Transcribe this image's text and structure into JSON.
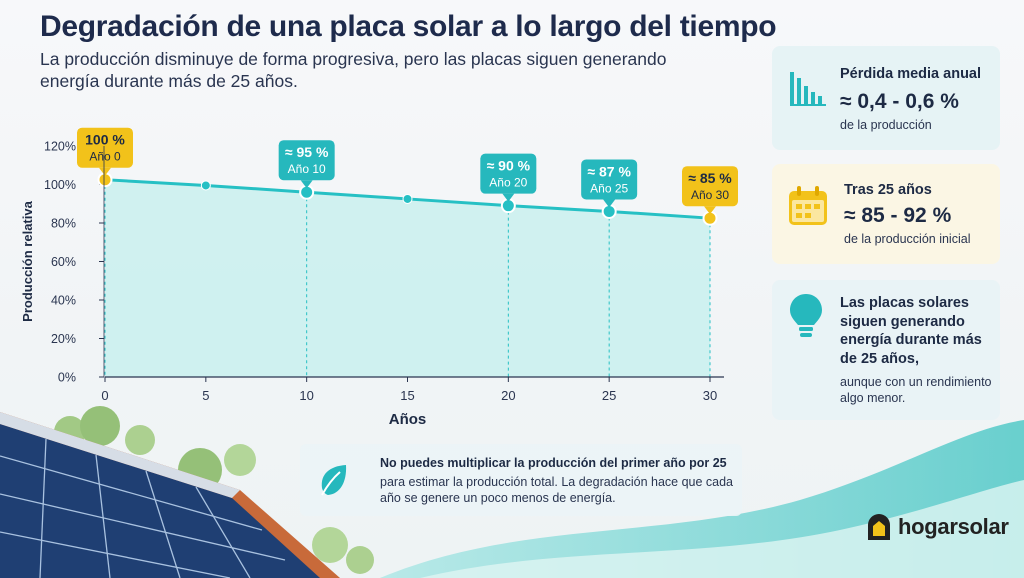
{
  "title": "Degradación de una placa solar a lo largo del tiempo",
  "subtitle": "La producción disminuye de forma progresiva, pero las placas siguen generando energía durante más de 25 años.",
  "chart_data": {
    "type": "line",
    "xlabel": "Años",
    "ylabel": "Producción relativa",
    "x": [
      0,
      5,
      10,
      15,
      20,
      25,
      30
    ],
    "xlim": [
      0,
      30
    ],
    "ylim": [
      0,
      120
    ],
    "x_ticks": [
      "0",
      "5",
      "10",
      "15",
      "20",
      "25",
      "30"
    ],
    "y_ticks": [
      "0%",
      "20%",
      "40%",
      "60%",
      "80%",
      "100%",
      "120%"
    ],
    "y_tick_values": [
      0,
      20,
      40,
      60,
      80,
      100,
      120
    ],
    "series": [
      {
        "values": [
          102.5,
          99.5,
          96,
          92.5,
          89,
          86,
          82.5
        ]
      }
    ],
    "callouts": [
      {
        "x": 0,
        "label": "100 %",
        "sublabel": "Año 0",
        "color": "#f2c21a"
      },
      {
        "x": 10,
        "label": "≈ 95 %",
        "sublabel": "Año 10",
        "color": "#26b8bd"
      },
      {
        "x": 20,
        "label": "≈ 90 %",
        "sublabel": "Año 20",
        "color": "#26b8bd"
      },
      {
        "x": 25,
        "label": "≈ 87 %",
        "sublabel": "Año 25",
        "color": "#26b8bd"
      },
      {
        "x": 30,
        "label": "≈ 85 %",
        "sublabel": "Año 30",
        "color": "#f2c21a"
      }
    ],
    "line_color": "#26c0c4",
    "fill_color": "#c9f0ee",
    "grid": false
  },
  "cards": [
    {
      "icon": "bar-chart-icon",
      "head": "Pérdida media anual",
      "big": "≈ 0,4 - 0,6 %",
      "small": "de la producción"
    },
    {
      "icon": "calendar-icon",
      "head": "Tras 25 años",
      "big": "≈ 85 - 92 %",
      "small": "de la producción inicial"
    },
    {
      "icon": "lightbulb-icon",
      "head": "Las placas solares siguen generando energía durante más de 25 años,",
      "small": "aunque con un rendimiento algo menor."
    }
  ],
  "note": {
    "icon": "leaf-icon",
    "bold": "No puedes multiplicar la producción del primer año por 25",
    "rest": "para estimar la producción total. La degradación hace que cada año se genere un poco menos de energía."
  },
  "brand": {
    "name": "hogarsolar",
    "logo_icon": "house-logo-icon"
  },
  "colors": {
    "teal": "#26b8bd",
    "yellow": "#f2c21a",
    "navy": "#1e2b4c"
  }
}
